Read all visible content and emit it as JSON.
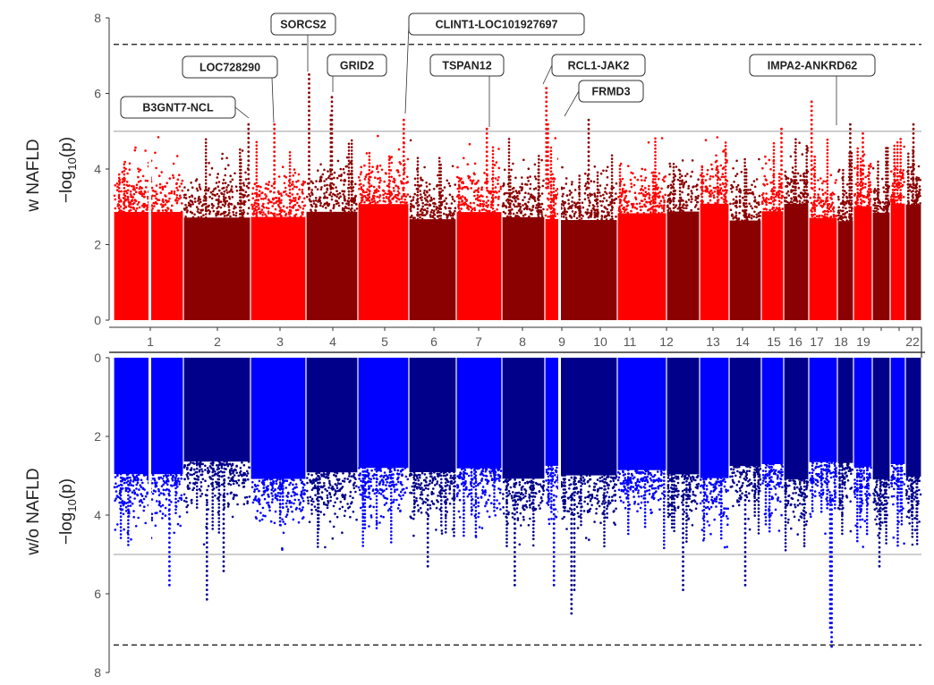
{
  "chart_data": [
    {
      "type": "scatter",
      "subtype": "manhattan",
      "panel": "top",
      "group_label": "w NAFLD",
      "ylabel": "-log10(p)",
      "ylim": [
        0,
        8
      ],
      "yticks": [
        0,
        2,
        4,
        6,
        8
      ],
      "x_axis": "chromosome",
      "chromosomes": [
        "1",
        "2",
        "3",
        "4",
        "5",
        "6",
        "7",
        "8",
        "9",
        "10",
        "11",
        "12",
        "13",
        "14",
        "15",
        "16",
        "17",
        "18",
        "19",
        "20",
        "21",
        "22"
      ],
      "chromosome_labels": [
        "1",
        "2",
        "3",
        "4",
        "5",
        "6",
        "7",
        "8",
        "9",
        "10",
        "11",
        "12",
        "13",
        "14",
        "15",
        "16",
        "17",
        "18",
        "19",
        "",
        "",
        "22"
      ],
      "colors": {
        "light": "#ff0000",
        "dark": "#8b0000"
      },
      "suggestive_line": 5.0,
      "genomewide_line": 7.3,
      "annotations": [
        {
          "gene": "B3GNT7-NCL",
          "chromosome": "2",
          "value": 5.2
        },
        {
          "gene": "LOC728290",
          "chromosome": "3",
          "value": 5.2
        },
        {
          "gene": "SORCS2",
          "chromosome": "4",
          "value": 6.6
        },
        {
          "gene": "GRID2",
          "chromosome": "4",
          "value": 6.0
        },
        {
          "gene": "CLINT1-LOC101927697",
          "chromosome": "5",
          "value": 5.4
        },
        {
          "gene": "TSPAN12",
          "chromosome": "7",
          "value": 5.1
        },
        {
          "gene": "RCL1-JAK2",
          "chromosome": "9",
          "value": 6.2
        },
        {
          "gene": "FRMD3",
          "chromosome": "9",
          "value": 5.3
        },
        {
          "gene": "IMPA2-ANKRD62",
          "chromosome": "18",
          "value": 5.2
        }
      ]
    },
    {
      "type": "scatter",
      "subtype": "manhattan",
      "panel": "bottom",
      "group_label": "w/o NAFLD",
      "ylabel": "-log10(p)",
      "ylim": [
        0,
        8
      ],
      "y_reversed": true,
      "yticks": [
        0,
        2,
        4,
        6,
        8
      ],
      "colors": {
        "light": "#0000ff",
        "dark": "#00008b"
      },
      "suggestive_line": 5.0,
      "genomewide_line": 7.3,
      "top_hits": [
        {
          "chromosome": "1",
          "value": 6.0
        },
        {
          "chromosome": "2",
          "value": 6.2
        },
        {
          "chromosome": "9",
          "value": 6.6
        },
        {
          "chromosome": "18",
          "value": 7.4
        }
      ]
    }
  ]
}
